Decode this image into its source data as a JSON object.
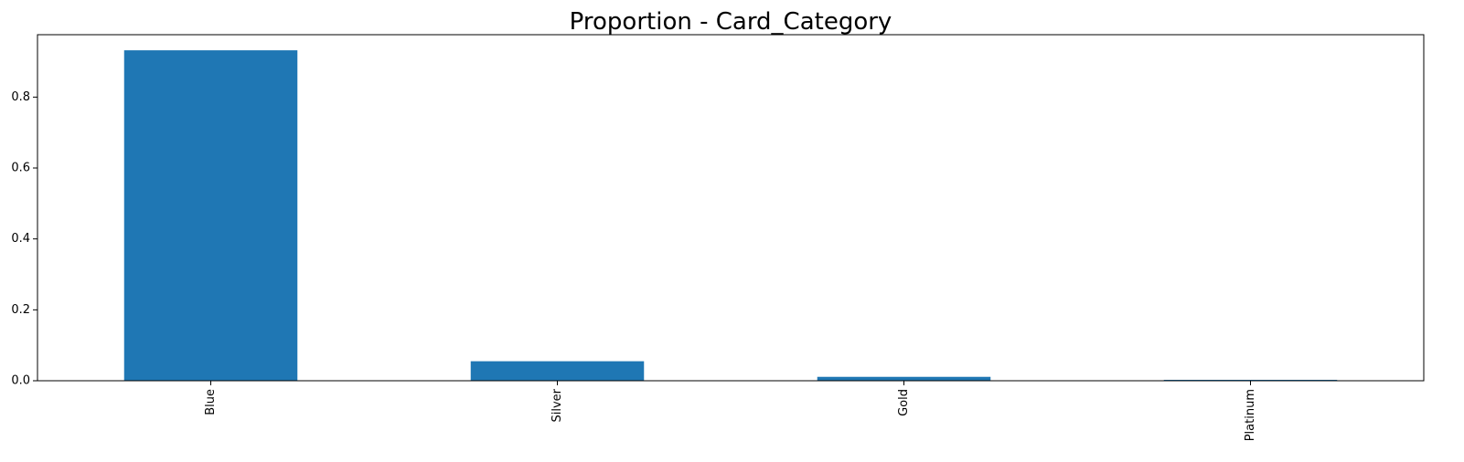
{
  "chart_data": {
    "type": "bar",
    "title": "Proportion - Card_Category",
    "xlabel": "",
    "ylabel": "",
    "categories": [
      "Blue",
      "Silver",
      "Gold",
      "Platinum"
    ],
    "values": [
      0.932,
      0.055,
      0.011,
      0.002
    ],
    "ylim": [
      0,
      0.976
    ],
    "yticks": [
      0.0,
      0.2,
      0.4,
      0.6,
      0.8
    ],
    "ytick_labels": [
      "0.0",
      "0.2",
      "0.4",
      "0.6",
      "0.8"
    ],
    "grid": false,
    "legend": "none",
    "bar_color": "#1f77b4"
  }
}
